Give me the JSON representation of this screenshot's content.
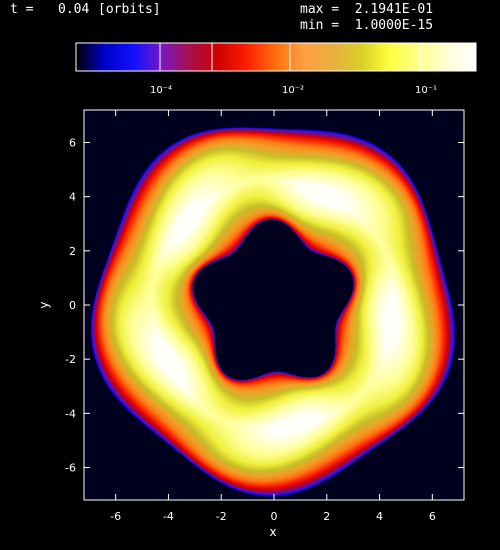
{
  "header": {
    "time_label": "t =",
    "time_value": "0.04",
    "time_unit": "[orbits]",
    "max_label": "max =",
    "max_value": "2.1941E-01",
    "min_label": "min =",
    "min_value": "1.0000E-15"
  },
  "colorbar": {
    "colors": [
      "#000000",
      "#0000c8",
      "#1010ff",
      "#7818c8",
      "#a81048",
      "#d00000",
      "#ff2000",
      "#ff7010",
      "#ffa040",
      "#e8b040",
      "#d8d028",
      "#ffff40",
      "#ffff90",
      "#ffffd8",
      "#ffffff"
    ],
    "tick_labels": [
      "10⁻⁴",
      "10⁻²",
      "10⁻¹"
    ]
  },
  "chart_data": {
    "type": "heatmap",
    "title": "",
    "xlabel": "x",
    "ylabel": "y",
    "xlim": [
      -7.2,
      7.2
    ],
    "ylim": [
      -7.2,
      7.2
    ],
    "xticks": [
      -6,
      -4,
      -2,
      0,
      2,
      4,
      6
    ],
    "yticks": [
      -6,
      -4,
      -2,
      0,
      2,
      4,
      6
    ],
    "xtick_labels": [
      "-6",
      "-4",
      "-2",
      "0",
      "2",
      "4",
      "6"
    ],
    "ytick_labels": [
      "-6",
      "-4",
      "-2",
      "0",
      "2",
      "4",
      "6"
    ],
    "background_color": "#00001e",
    "ring": {
      "description_values": "annular density distribution with pentagonal inner edge",
      "inner_radius": 3.4,
      "outer_radius": 6.2,
      "inner_modes": 5,
      "outer_modes": 5,
      "peak_radius": 4.4
    }
  }
}
